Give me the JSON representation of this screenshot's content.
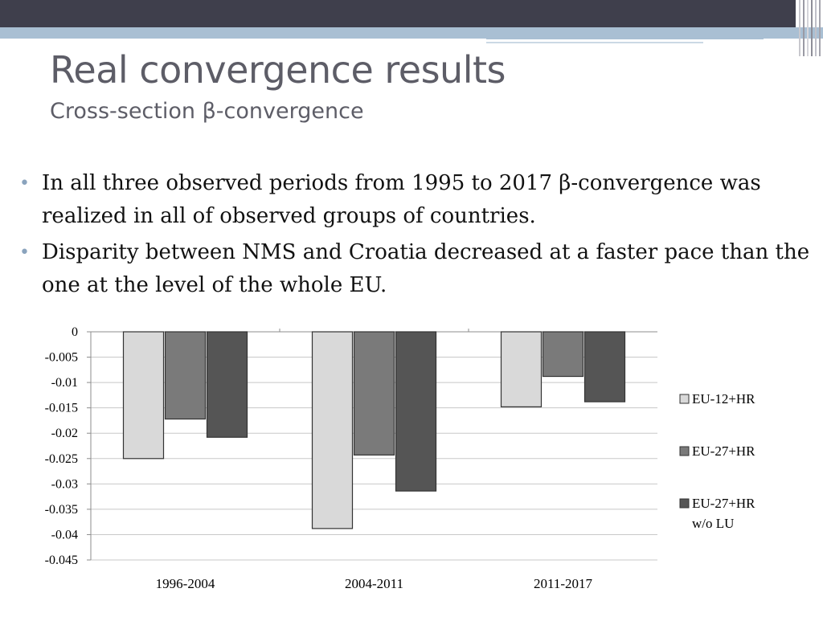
{
  "colors": {
    "header_dark": "#3f3f4c",
    "header_light": "#a9bfd3",
    "title": "#5d5d67",
    "bullet_dot": "#8aa3bd",
    "text": "#111111"
  },
  "slide": {
    "title": "Real convergence results",
    "subtitle": "Cross-section β-convergence",
    "bullets": [
      "In all three observed periods from 1995 to 2017 β-convergence was realized in all of observed groups of countries.",
      "Disparity between NMS and Croatia decreased at a faster pace than the one at the level of the whole EU."
    ]
  },
  "chart_data": {
    "type": "bar",
    "categories": [
      "1996-2004",
      "2004-2011",
      "2011-2017"
    ],
    "series": [
      {
        "name": "EU-12+HR",
        "values": [
          -0.025,
          -0.0388,
          -0.0148
        ],
        "color": "#d9d9d9"
      },
      {
        "name": "EU-27+HR",
        "values": [
          -0.0172,
          -0.0243,
          -0.0088
        ],
        "color": "#7a7a7a"
      },
      {
        "name": "EU-27+HR w/o LU",
        "values": [
          -0.0208,
          -0.0314,
          -0.0138
        ],
        "color": "#555555"
      }
    ],
    "ylim": [
      -0.045,
      0
    ],
    "yticks": [
      "0",
      "-0.005",
      "-0.01",
      "-0.015",
      "-0.02",
      "-0.025",
      "-0.03",
      "-0.035",
      "-0.04",
      "-0.045"
    ],
    "grid": true,
    "legend": "right",
    "title": "",
    "xlabel": "",
    "ylabel": ""
  }
}
